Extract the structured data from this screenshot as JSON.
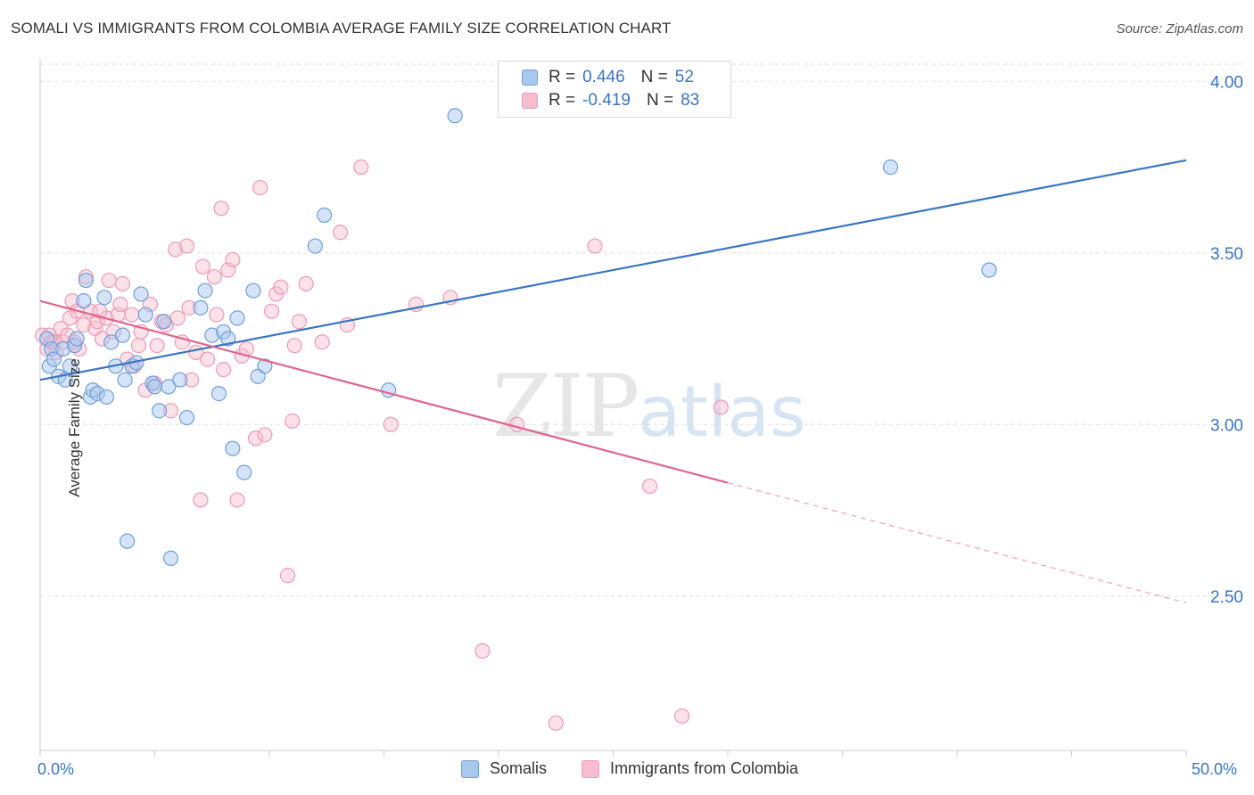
{
  "title": "SOMALI VS IMMIGRANTS FROM COLOMBIA AVERAGE FAMILY SIZE CORRELATION CHART",
  "source": "Source: ZipAtlas.com",
  "watermark": {
    "zip": "ZIP",
    "atlas": "atlas"
  },
  "legend_top": {
    "row1": {
      "r_label": "R =",
      "r_value": "0.446",
      "n_label": "N =",
      "n_value": "52"
    },
    "row2": {
      "r_label": "R =",
      "r_value": "-0.419",
      "n_label": "N =",
      "n_value": "83"
    }
  },
  "bottom_legend": {
    "series1": "Somalis",
    "series2": "Immigrants from Colombia"
  },
  "x_tick_labels": {
    "left": "0.0%",
    "right": "50.0%"
  },
  "colors": {
    "somali_fill": "#a9c8ef",
    "somali_stroke": "#6f9fdc",
    "somali_line": "#3a75c4",
    "colombia_fill": "#f7bccd",
    "colombia_stroke": "#ec9bb4",
    "colombia_line": "#e0648e",
    "tick_label": "#3a75c4",
    "grid": "#dddddd"
  },
  "chart_data": {
    "type": "scatter",
    "title": "SOMALI VS IMMIGRANTS FROM COLOMBIA AVERAGE FAMILY SIZE CORRELATION CHART",
    "xlabel": "",
    "ylabel": "Average Family Size",
    "xlim": [
      0,
      50
    ],
    "ylim": [
      2.05,
      4.05
    ],
    "y_ticks": [
      2.5,
      3.0,
      3.5,
      4.0
    ],
    "y_tick_labels": [
      "2.50",
      "3.00",
      "3.50",
      "4.00"
    ],
    "x_tick_labels": [
      "0.0%",
      "50.0%"
    ],
    "grid": "horizontal dashed",
    "legend": "top-center",
    "series": [
      {
        "name": "Somalis",
        "r": 0.446,
        "n": 52,
        "trend": {
          "x": [
            0,
            50
          ],
          "y": [
            3.13,
            3.77
          ]
        },
        "points": [
          [
            0.3,
            3.25
          ],
          [
            0.4,
            3.17
          ],
          [
            0.5,
            3.22
          ],
          [
            0.6,
            3.19
          ],
          [
            0.8,
            3.14
          ],
          [
            1.0,
            3.22
          ],
          [
            1.1,
            3.13
          ],
          [
            1.3,
            3.17
          ],
          [
            1.5,
            3.23
          ],
          [
            1.6,
            3.25
          ],
          [
            1.9,
            3.36
          ],
          [
            2.0,
            3.42
          ],
          [
            2.2,
            3.08
          ],
          [
            2.3,
            3.1
          ],
          [
            2.5,
            3.09
          ],
          [
            2.8,
            3.37
          ],
          [
            2.9,
            3.08
          ],
          [
            3.1,
            3.24
          ],
          [
            3.3,
            3.17
          ],
          [
            3.6,
            3.26
          ],
          [
            3.7,
            3.13
          ],
          [
            3.8,
            2.66
          ],
          [
            4.0,
            3.17
          ],
          [
            4.2,
            3.18
          ],
          [
            4.4,
            3.38
          ],
          [
            4.6,
            3.32
          ],
          [
            4.9,
            3.12
          ],
          [
            5.0,
            3.11
          ],
          [
            5.2,
            3.04
          ],
          [
            5.4,
            3.3
          ],
          [
            5.6,
            3.11
          ],
          [
            5.7,
            2.61
          ],
          [
            6.1,
            3.13
          ],
          [
            6.4,
            3.02
          ],
          [
            7.0,
            3.34
          ],
          [
            7.2,
            3.39
          ],
          [
            7.5,
            3.26
          ],
          [
            7.8,
            3.09
          ],
          [
            8.0,
            3.27
          ],
          [
            8.2,
            3.25
          ],
          [
            8.4,
            2.93
          ],
          [
            8.6,
            3.31
          ],
          [
            8.9,
            2.86
          ],
          [
            9.3,
            3.39
          ],
          [
            9.5,
            3.14
          ],
          [
            9.8,
            3.17
          ],
          [
            12.0,
            3.52
          ],
          [
            12.4,
            3.61
          ],
          [
            15.2,
            3.1
          ],
          [
            18.1,
            3.9
          ],
          [
            37.1,
            3.75
          ],
          [
            41.4,
            3.45
          ]
        ]
      },
      {
        "name": "Immigrants from Colombia",
        "r": -0.419,
        "n": 83,
        "trend": {
          "x": [
            0,
            30
          ],
          "y": [
            3.36,
            2.83
          ]
        },
        "trend_dashed": {
          "x": [
            30,
            50
          ],
          "y": [
            2.83,
            2.48
          ]
        },
        "points": [
          [
            0.1,
            3.26
          ],
          [
            0.3,
            3.22
          ],
          [
            0.4,
            3.26
          ],
          [
            0.5,
            3.24
          ],
          [
            0.6,
            3.24
          ],
          [
            0.7,
            3.21
          ],
          [
            0.9,
            3.28
          ],
          [
            1.0,
            3.24
          ],
          [
            1.2,
            3.26
          ],
          [
            1.3,
            3.31
          ],
          [
            1.4,
            3.36
          ],
          [
            1.6,
            3.33
          ],
          [
            1.7,
            3.22
          ],
          [
            1.9,
            3.29
          ],
          [
            2.0,
            3.43
          ],
          [
            2.2,
            3.33
          ],
          [
            2.4,
            3.28
          ],
          [
            2.5,
            3.3
          ],
          [
            2.7,
            3.25
          ],
          [
            2.9,
            3.31
          ],
          [
            3.0,
            3.42
          ],
          [
            3.2,
            3.27
          ],
          [
            3.4,
            3.32
          ],
          [
            3.5,
            3.35
          ],
          [
            3.6,
            3.41
          ],
          [
            3.8,
            3.19
          ],
          [
            4.0,
            3.32
          ],
          [
            4.1,
            3.17
          ],
          [
            4.3,
            3.23
          ],
          [
            4.4,
            3.27
          ],
          [
            4.6,
            3.1
          ],
          [
            4.8,
            3.35
          ],
          [
            5.0,
            3.12
          ],
          [
            5.1,
            3.23
          ],
          [
            5.3,
            3.3
          ],
          [
            5.5,
            3.29
          ],
          [
            5.7,
            3.04
          ],
          [
            5.9,
            3.51
          ],
          [
            6.0,
            3.31
          ],
          [
            6.2,
            3.24
          ],
          [
            6.4,
            3.52
          ],
          [
            6.5,
            3.34
          ],
          [
            6.6,
            3.13
          ],
          [
            6.8,
            3.21
          ],
          [
            7.0,
            2.78
          ],
          [
            7.1,
            3.46
          ],
          [
            7.3,
            3.19
          ],
          [
            7.6,
            3.43
          ],
          [
            7.7,
            3.32
          ],
          [
            7.9,
            3.63
          ],
          [
            8.0,
            3.16
          ],
          [
            8.2,
            3.45
          ],
          [
            8.4,
            3.48
          ],
          [
            8.6,
            2.78
          ],
          [
            8.8,
            3.2
          ],
          [
            9.0,
            3.22
          ],
          [
            9.4,
            2.96
          ],
          [
            9.6,
            3.69
          ],
          [
            9.8,
            2.97
          ],
          [
            10.1,
            3.33
          ],
          [
            10.3,
            3.38
          ],
          [
            10.5,
            3.4
          ],
          [
            10.8,
            2.56
          ],
          [
            11.0,
            3.01
          ],
          [
            11.1,
            3.23
          ],
          [
            11.3,
            3.3
          ],
          [
            11.6,
            3.41
          ],
          [
            12.3,
            3.24
          ],
          [
            13.1,
            3.56
          ],
          [
            13.4,
            3.29
          ],
          [
            14.0,
            3.75
          ],
          [
            15.3,
            3.0
          ],
          [
            16.4,
            3.35
          ],
          [
            17.9,
            3.37
          ],
          [
            19.3,
            2.34
          ],
          [
            20.8,
            3.0
          ],
          [
            22.5,
            2.13
          ],
          [
            24.2,
            3.52
          ],
          [
            26.6,
            2.82
          ],
          [
            28.0,
            2.15
          ],
          [
            29.7,
            3.05
          ],
          [
            1.5,
            3.24
          ],
          [
            2.6,
            3.33
          ]
        ]
      }
    ]
  }
}
